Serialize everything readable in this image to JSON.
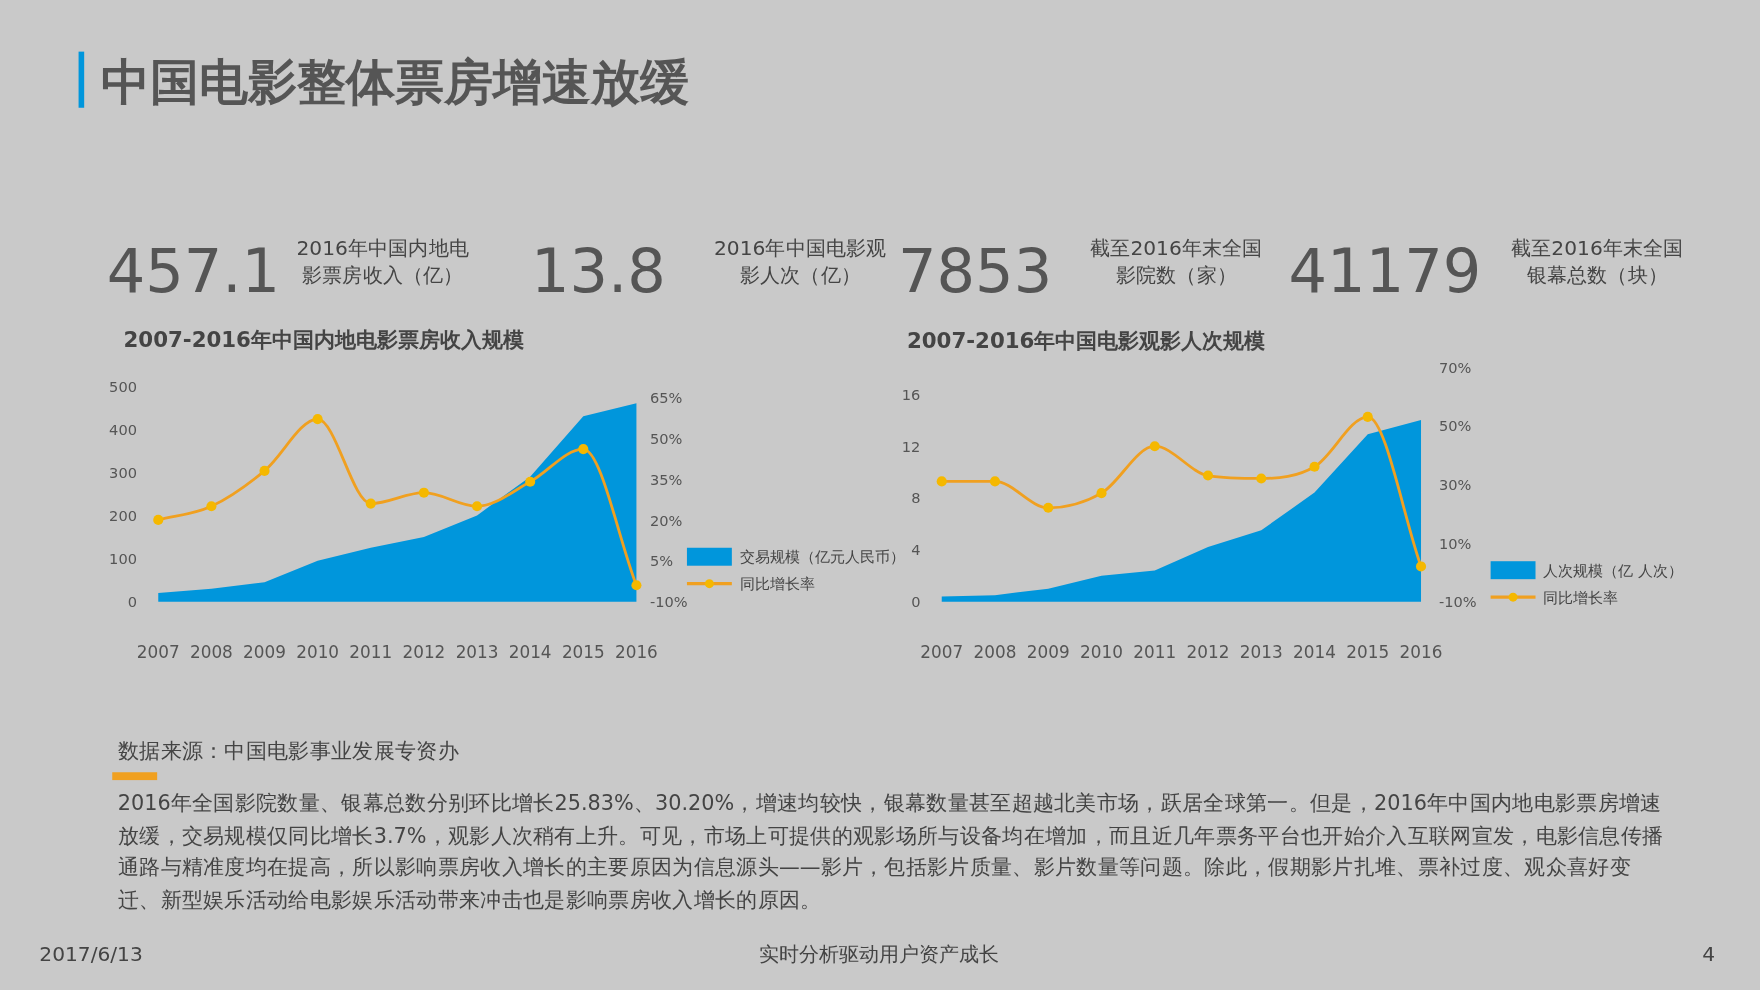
{
  "chart_data": [
    {
      "type": "other",
      "title": "中国电影整体票房增速放缓",
      "annotations": [
        "457.1",
        "2016年中国内地电影票房收入（亿）",
        "13.8",
        "2016年中国电影观影人次（亿）",
        "7853",
        "截至2016年末全国影院数（家）",
        "41179",
        "截至2016年末全国银幕总数（块）",
        "数据来源：中国电影事业发展专资办",
        "2016年全国影院数量、银幕总数分别环比增长25.83%、30.20%，增速均较快，银幕数量甚至超越北美市场，跃居全球第一。但是，2016年中国内地电影票房增速放缓，交易规模仅同比增长3.7%，观影人次稍有上升。可见，市场上可提供的观影场所与设备均在增加，而且近几年票务平台也开始介入互联网宣发，电影信息传播通路与精准度均在提高，所以影响票房收入增长的主要原因为信息源头——影片，包括影片质量、影片数量等问题。除此，假期影片扎堆、票补过度、观众喜好变迁、新型娱乐活动给电影娱乐活动带来冲击也是影响票房收入增长的原因。",
        "2017/6/13",
        "实时分析驱动用户资产成长",
        "4"
      ]
    },
    {
      "type": "area",
      "title": "2007-2016年中国内地电影票房收入规模",
      "categories": [
        "2007",
        "2008",
        "2009",
        "2010",
        "2011",
        "2012",
        "2013",
        "2014",
        "2015",
        "2016"
      ],
      "series": [
        {
          "name": "交易规模（亿元人民币）",
          "type": "area",
          "color": "#0096dc",
          "values": [
            20,
            30,
            45,
            95,
            125,
            150,
            200,
            290,
            430,
            460
          ]
        },
        {
          "name": "同比增长率",
          "type": "line",
          "axis": "y2",
          "color": "#f0a020",
          "marker": "circle",
          "values": [
            20,
            25,
            38,
            57,
            26,
            30,
            25,
            34,
            46,
            -4
          ]
        }
      ],
      "ylim": [
        0,
        500
      ],
      "yticks": [
        0,
        100,
        200,
        300,
        400,
        500
      ],
      "y2lim": [
        -10,
        65
      ],
      "y2ticks": [
        {
          "value": -10,
          "label": "-10%"
        },
        {
          "value": 5,
          "label": "5%"
        },
        {
          "value": 20,
          "label": "20%"
        },
        {
          "value": 35,
          "label": "35%"
        },
        {
          "value": 50,
          "label": "50%"
        },
        {
          "value": 65,
          "label": "65%"
        }
      ],
      "legend": "right"
    },
    {
      "type": "area",
      "title": "2007-2016年中国电影观影人次规模",
      "categories": [
        "2007",
        "2008",
        "2009",
        "2010",
        "2011",
        "2012",
        "2013",
        "2014",
        "2015",
        "2016"
      ],
      "series": [
        {
          "name": "人次规模（亿 人次）",
          "type": "area",
          "color": "#0096dc",
          "values": [
            0.4,
            0.5,
            1.0,
            2.0,
            2.4,
            4.2,
            5.5,
            8.4,
            12.9,
            14.0
          ]
        },
        {
          "name": "同比增长率",
          "type": "line",
          "axis": "y2",
          "color": "#f0a020",
          "marker": "circle",
          "values": [
            31,
            31,
            22,
            27,
            43,
            33,
            32,
            36,
            53,
            2
          ]
        }
      ],
      "ylim": [
        0,
        16
      ],
      "yticks": [
        0,
        4,
        8,
        12,
        16
      ],
      "y2lim": [
        -10,
        70
      ],
      "y2ticks": [
        {
          "value": -10,
          "label": "-10%"
        },
        {
          "value": 10,
          "label": "10%"
        },
        {
          "value": 30,
          "label": "30%"
        },
        {
          "value": 50,
          "label": "50%"
        },
        {
          "value": 70,
          "label": "70%"
        }
      ],
      "legend": "right"
    }
  ]
}
